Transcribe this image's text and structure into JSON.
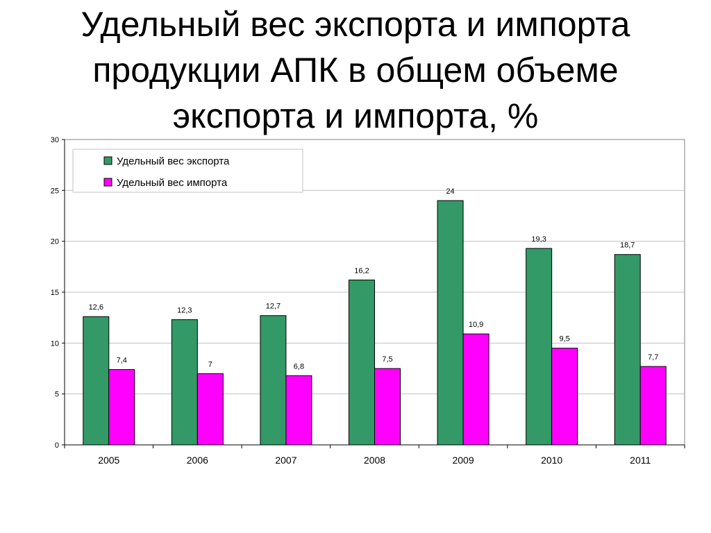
{
  "slide": {
    "title_lines": [
      "Удельный вес экспорта и импорта",
      "продукции АПК в общем объеме",
      "экспорта и импорта, %"
    ]
  },
  "chart_data": {
    "type": "bar",
    "title": "",
    "xlabel": "",
    "ylabel": "",
    "categories": [
      "2005",
      "2006",
      "2007",
      "2008",
      "2009",
      "2010",
      "2011"
    ],
    "series": [
      {
        "name": "Удельный вес экспорта",
        "color": "#339966",
        "values": [
          12.6,
          12.3,
          12.7,
          16.2,
          24,
          19.3,
          18.7
        ],
        "labels": [
          "12,6",
          "12,3",
          "12,7",
          "16,2",
          "24",
          "19,3",
          "18,7"
        ]
      },
      {
        "name": "Удельный вес импорта",
        "color": "#FF00FF",
        "values": [
          7.4,
          7,
          6.8,
          7.5,
          10.9,
          9.5,
          7.7
        ],
        "labels": [
          "7,4",
          "7",
          "6,8",
          "7,5",
          "10,9",
          "9,5",
          "7,7"
        ]
      }
    ],
    "ylim": [
      0,
      30
    ],
    "yticks": [
      "0",
      "5",
      "10",
      "15",
      "20",
      "25",
      "30"
    ],
    "grid": true,
    "legend": "top-left"
  }
}
